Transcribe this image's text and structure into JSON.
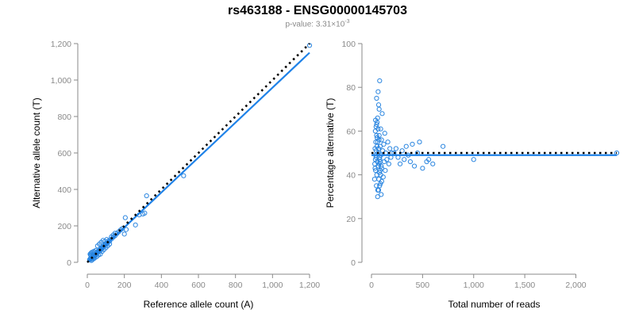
{
  "title": "rs463188 - ENSG00000145703",
  "subtitle": {
    "prefix": "p-value: 3.31×10",
    "exponent": "-3"
  },
  "colors": {
    "points": "#2b86e0",
    "fit_line": "#1f82e8",
    "reference_line": "#000000",
    "axis": "#8a8a8a"
  },
  "chart_data": [
    {
      "type": "scatter",
      "xlabel": "Reference allele count (A)",
      "ylabel": "Alternative allele count (T)",
      "xlim": [
        0,
        1200
      ],
      "ylim": [
        0,
        1200
      ],
      "xticks": [
        0,
        200,
        400,
        600,
        800,
        1000,
        1200
      ],
      "xtick_labels": [
        "0",
        "200",
        "400",
        "600",
        "800",
        "1,000",
        "1,200"
      ],
      "yticks": [
        0,
        200,
        400,
        600,
        800,
        1000,
        1200
      ],
      "ytick_labels": [
        "0",
        "200",
        "400",
        "600",
        "800",
        "1,000",
        "1,200"
      ],
      "grid": false,
      "points": [
        [
          12,
          14
        ],
        [
          15,
          18
        ],
        [
          18,
          22
        ],
        [
          20,
          25
        ],
        [
          22,
          20
        ],
        [
          25,
          28
        ],
        [
          28,
          30
        ],
        [
          30,
          26
        ],
        [
          32,
          34
        ],
        [
          35,
          32
        ],
        [
          38,
          40
        ],
        [
          40,
          36
        ],
        [
          42,
          45
        ],
        [
          45,
          42
        ],
        [
          48,
          50
        ],
        [
          50,
          48
        ],
        [
          52,
          55
        ],
        [
          55,
          52
        ],
        [
          58,
          60
        ],
        [
          60,
          58
        ],
        [
          62,
          64
        ],
        [
          65,
          62
        ],
        [
          68,
          70
        ],
        [
          70,
          66
        ],
        [
          72,
          75
        ],
        [
          75,
          72
        ],
        [
          78,
          80
        ],
        [
          80,
          78
        ],
        [
          85,
          84
        ],
        [
          90,
          88
        ],
        [
          95,
          96
        ],
        [
          100,
          98
        ],
        [
          105,
          104
        ],
        [
          110,
          108
        ],
        [
          115,
          118
        ],
        [
          120,
          116
        ],
        [
          130,
          128
        ],
        [
          140,
          138
        ],
        [
          150,
          146
        ],
        [
          160,
          158
        ],
        [
          170,
          168
        ],
        [
          180,
          178
        ],
        [
          190,
          186
        ],
        [
          15,
          45
        ],
        [
          20,
          50
        ],
        [
          25,
          55
        ],
        [
          30,
          40
        ],
        [
          35,
          60
        ],
        [
          40,
          55
        ],
        [
          45,
          65
        ],
        [
          20,
          35
        ],
        [
          18,
          40
        ],
        [
          22,
          10
        ],
        [
          28,
          15
        ],
        [
          35,
          20
        ],
        [
          40,
          25
        ],
        [
          50,
          30
        ],
        [
          60,
          40
        ],
        [
          70,
          45
        ],
        [
          80,
          60
        ],
        [
          90,
          70
        ],
        [
          100,
          80
        ],
        [
          110,
          90
        ],
        [
          120,
          100
        ],
        [
          55,
          90
        ],
        [
          65,
          100
        ],
        [
          75,
          110
        ],
        [
          85,
          120
        ],
        [
          95,
          115
        ],
        [
          105,
          125
        ],
        [
          130,
          140
        ],
        [
          140,
          150
        ],
        [
          150,
          160
        ],
        [
          200,
          155
        ],
        [
          205,
          245
        ],
        [
          210,
          180
        ],
        [
          260,
          205
        ],
        [
          280,
          260
        ],
        [
          300,
          265
        ],
        [
          310,
          270
        ],
        [
          320,
          365
        ],
        [
          520,
          475
        ],
        [
          1200,
          1190
        ]
      ],
      "fit_line": [
        [
          0,
          0
        ],
        [
          1200,
          1150
        ]
      ],
      "reference_line": [
        [
          0,
          0
        ],
        [
          1200,
          1200
        ]
      ]
    },
    {
      "type": "scatter",
      "xlabel": "Total number of reads",
      "ylabel": "Percentage alternative (T)",
      "xlim": [
        0,
        2400
      ],
      "ylim": [
        0,
        100
      ],
      "xticks": [
        0,
        500,
        1000,
        1500,
        2000
      ],
      "xtick_labels": [
        "0",
        "500",
        "1,000",
        "1,500",
        "2,000"
      ],
      "yticks": [
        0,
        20,
        40,
        60,
        80,
        100
      ],
      "ytick_labels": [
        "0",
        "20",
        "40",
        "60",
        "80",
        "100"
      ],
      "grid": false,
      "points": [
        [
          30,
          38
        ],
        [
          32,
          45
        ],
        [
          35,
          52
        ],
        [
          38,
          60
        ],
        [
          40,
          42
        ],
        [
          42,
          55
        ],
        [
          45,
          48
        ],
        [
          48,
          35
        ],
        [
          50,
          63
        ],
        [
          52,
          40
        ],
        [
          55,
          57
        ],
        [
          58,
          46
        ],
        [
          60,
          66
        ],
        [
          62,
          33
        ],
        [
          65,
          50
        ],
        [
          68,
          44
        ],
        [
          70,
          72
        ],
        [
          72,
          38
        ],
        [
          75,
          58
        ],
        [
          78,
          41
        ],
        [
          80,
          83
        ],
        [
          82,
          47
        ],
        [
          85,
          53
        ],
        [
          88,
          36
        ],
        [
          90,
          61
        ],
        [
          92,
          49
        ],
        [
          95,
          31
        ],
        [
          98,
          56
        ],
        [
          100,
          43
        ],
        [
          105,
          68
        ],
        [
          110,
          51
        ],
        [
          115,
          39
        ],
        [
          120,
          54
        ],
        [
          125,
          46
        ],
        [
          130,
          59
        ],
        [
          135,
          42
        ],
        [
          140,
          50
        ],
        [
          150,
          47
        ],
        [
          160,
          55
        ],
        [
          170,
          45
        ],
        [
          180,
          52
        ],
        [
          190,
          48
        ],
        [
          200,
          50
        ],
        [
          40,
          65
        ],
        [
          45,
          62
        ],
        [
          50,
          58
        ],
        [
          55,
          64
        ],
        [
          60,
          55
        ],
        [
          65,
          61
        ],
        [
          70,
          52
        ],
        [
          75,
          45
        ],
        [
          80,
          48
        ],
        [
          85,
          42
        ],
        [
          90,
          40
        ],
        [
          95,
          44
        ],
        [
          100,
          37
        ],
        [
          60,
          30
        ],
        [
          70,
          33
        ],
        [
          80,
          35
        ],
        [
          50,
          75
        ],
        [
          65,
          78
        ],
        [
          75,
          70
        ],
        [
          35,
          43
        ],
        [
          38,
          47
        ],
        [
          42,
          49
        ],
        [
          46,
          51
        ],
        [
          54,
          53
        ],
        [
          64,
          44
        ],
        [
          74,
          56
        ],
        [
          84,
          46
        ],
        [
          220,
          50
        ],
        [
          240,
          52
        ],
        [
          260,
          48
        ],
        [
          280,
          45
        ],
        [
          300,
          51
        ],
        [
          320,
          47
        ],
        [
          340,
          53
        ],
        [
          360,
          49
        ],
        [
          380,
          46
        ],
        [
          400,
          54
        ],
        [
          420,
          44
        ],
        [
          450,
          50
        ],
        [
          470,
          55
        ],
        [
          500,
          43
        ],
        [
          540,
          46
        ],
        [
          560,
          47
        ],
        [
          600,
          45
        ],
        [
          700,
          53
        ],
        [
          1000,
          47
        ],
        [
          2400,
          50
        ]
      ],
      "fit_line": [
        [
          0,
          49
        ],
        [
          2400,
          49
        ]
      ],
      "reference_line": [
        [
          0,
          50
        ],
        [
          2400,
          50
        ]
      ]
    }
  ]
}
